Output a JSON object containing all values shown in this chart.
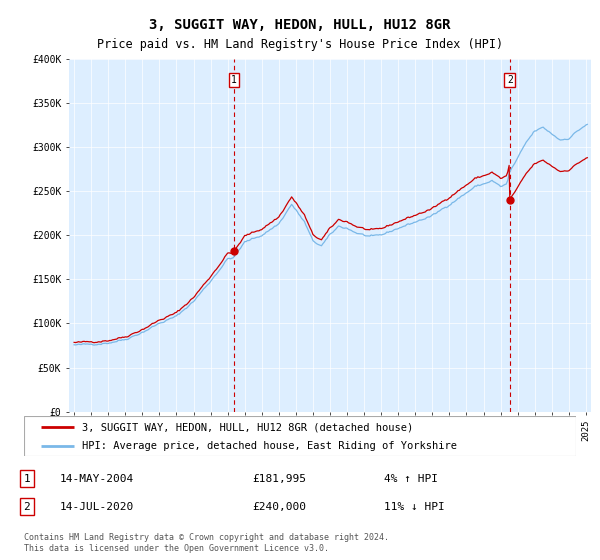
{
  "title": "3, SUGGIT WAY, HEDON, HULL, HU12 8GR",
  "subtitle": "Price paid vs. HM Land Registry's House Price Index (HPI)",
  "background_color": "#ffffff",
  "plot_bg_color": "#ddeeff",
  "hpi_color": "#7ab8e8",
  "sale_color": "#cc0000",
  "ylim": [
    0,
    400000
  ],
  "yticks": [
    0,
    50000,
    100000,
    150000,
    200000,
    250000,
    300000,
    350000,
    400000
  ],
  "ytick_labels": [
    "£0",
    "£50K",
    "£100K",
    "£150K",
    "£200K",
    "£250K",
    "£300K",
    "£350K",
    "£400K"
  ],
  "sale1_year": 2004.37,
  "sale1_price": 181995,
  "sale2_year": 2020.54,
  "sale2_price": 240000,
  "legend_sale_label": "3, SUGGIT WAY, HEDON, HULL, HU12 8GR (detached house)",
  "legend_hpi_label": "HPI: Average price, detached house, East Riding of Yorkshire",
  "table_row1": [
    "1",
    "14-MAY-2004",
    "£181,995",
    "4% ↑ HPI"
  ],
  "table_row2": [
    "2",
    "14-JUL-2020",
    "£240,000",
    "11% ↓ HPI"
  ],
  "footer": "Contains HM Land Registry data © Crown copyright and database right 2024.\nThis data is licensed under the Open Government Licence v3.0."
}
